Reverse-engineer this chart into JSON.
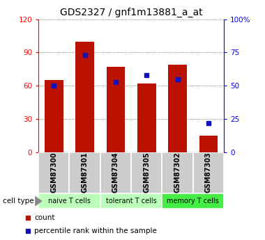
{
  "title": "GDS2327 / gnf1m13881_a_at",
  "samples": [
    "GSM87300",
    "GSM87301",
    "GSM87304",
    "GSM87305",
    "GSM87302",
    "GSM87303"
  ],
  "counts": [
    65,
    100,
    77,
    62,
    79,
    15
  ],
  "percentiles": [
    50,
    73,
    53,
    58,
    55,
    22
  ],
  "ct_data": [
    {
      "label": "naive T cells",
      "start": 0,
      "end": 2,
      "color": "#bbffbb"
    },
    {
      "label": "tolerant T cells",
      "start": 2,
      "end": 4,
      "color": "#bbffbb"
    },
    {
      "label": "memory T cells",
      "start": 4,
      "end": 6,
      "color": "#44ee44"
    }
  ],
  "bar_color": "#bb1100",
  "marker_color": "#1111bb",
  "left_ylim": [
    0,
    120
  ],
  "right_ylim": [
    0,
    100
  ],
  "left_yticks": [
    0,
    30,
    60,
    90,
    120
  ],
  "right_yticks": [
    0,
    25,
    50,
    75,
    100
  ],
  "right_yticklabels": [
    "0",
    "25",
    "50",
    "75",
    "100%"
  ],
  "title_fontsize": 10,
  "bar_width": 0.6,
  "label_bg": "#cccccc",
  "legend_red_label": "count",
  "legend_blue_label": "percentile rank within the sample",
  "cell_type_text": "cell type"
}
